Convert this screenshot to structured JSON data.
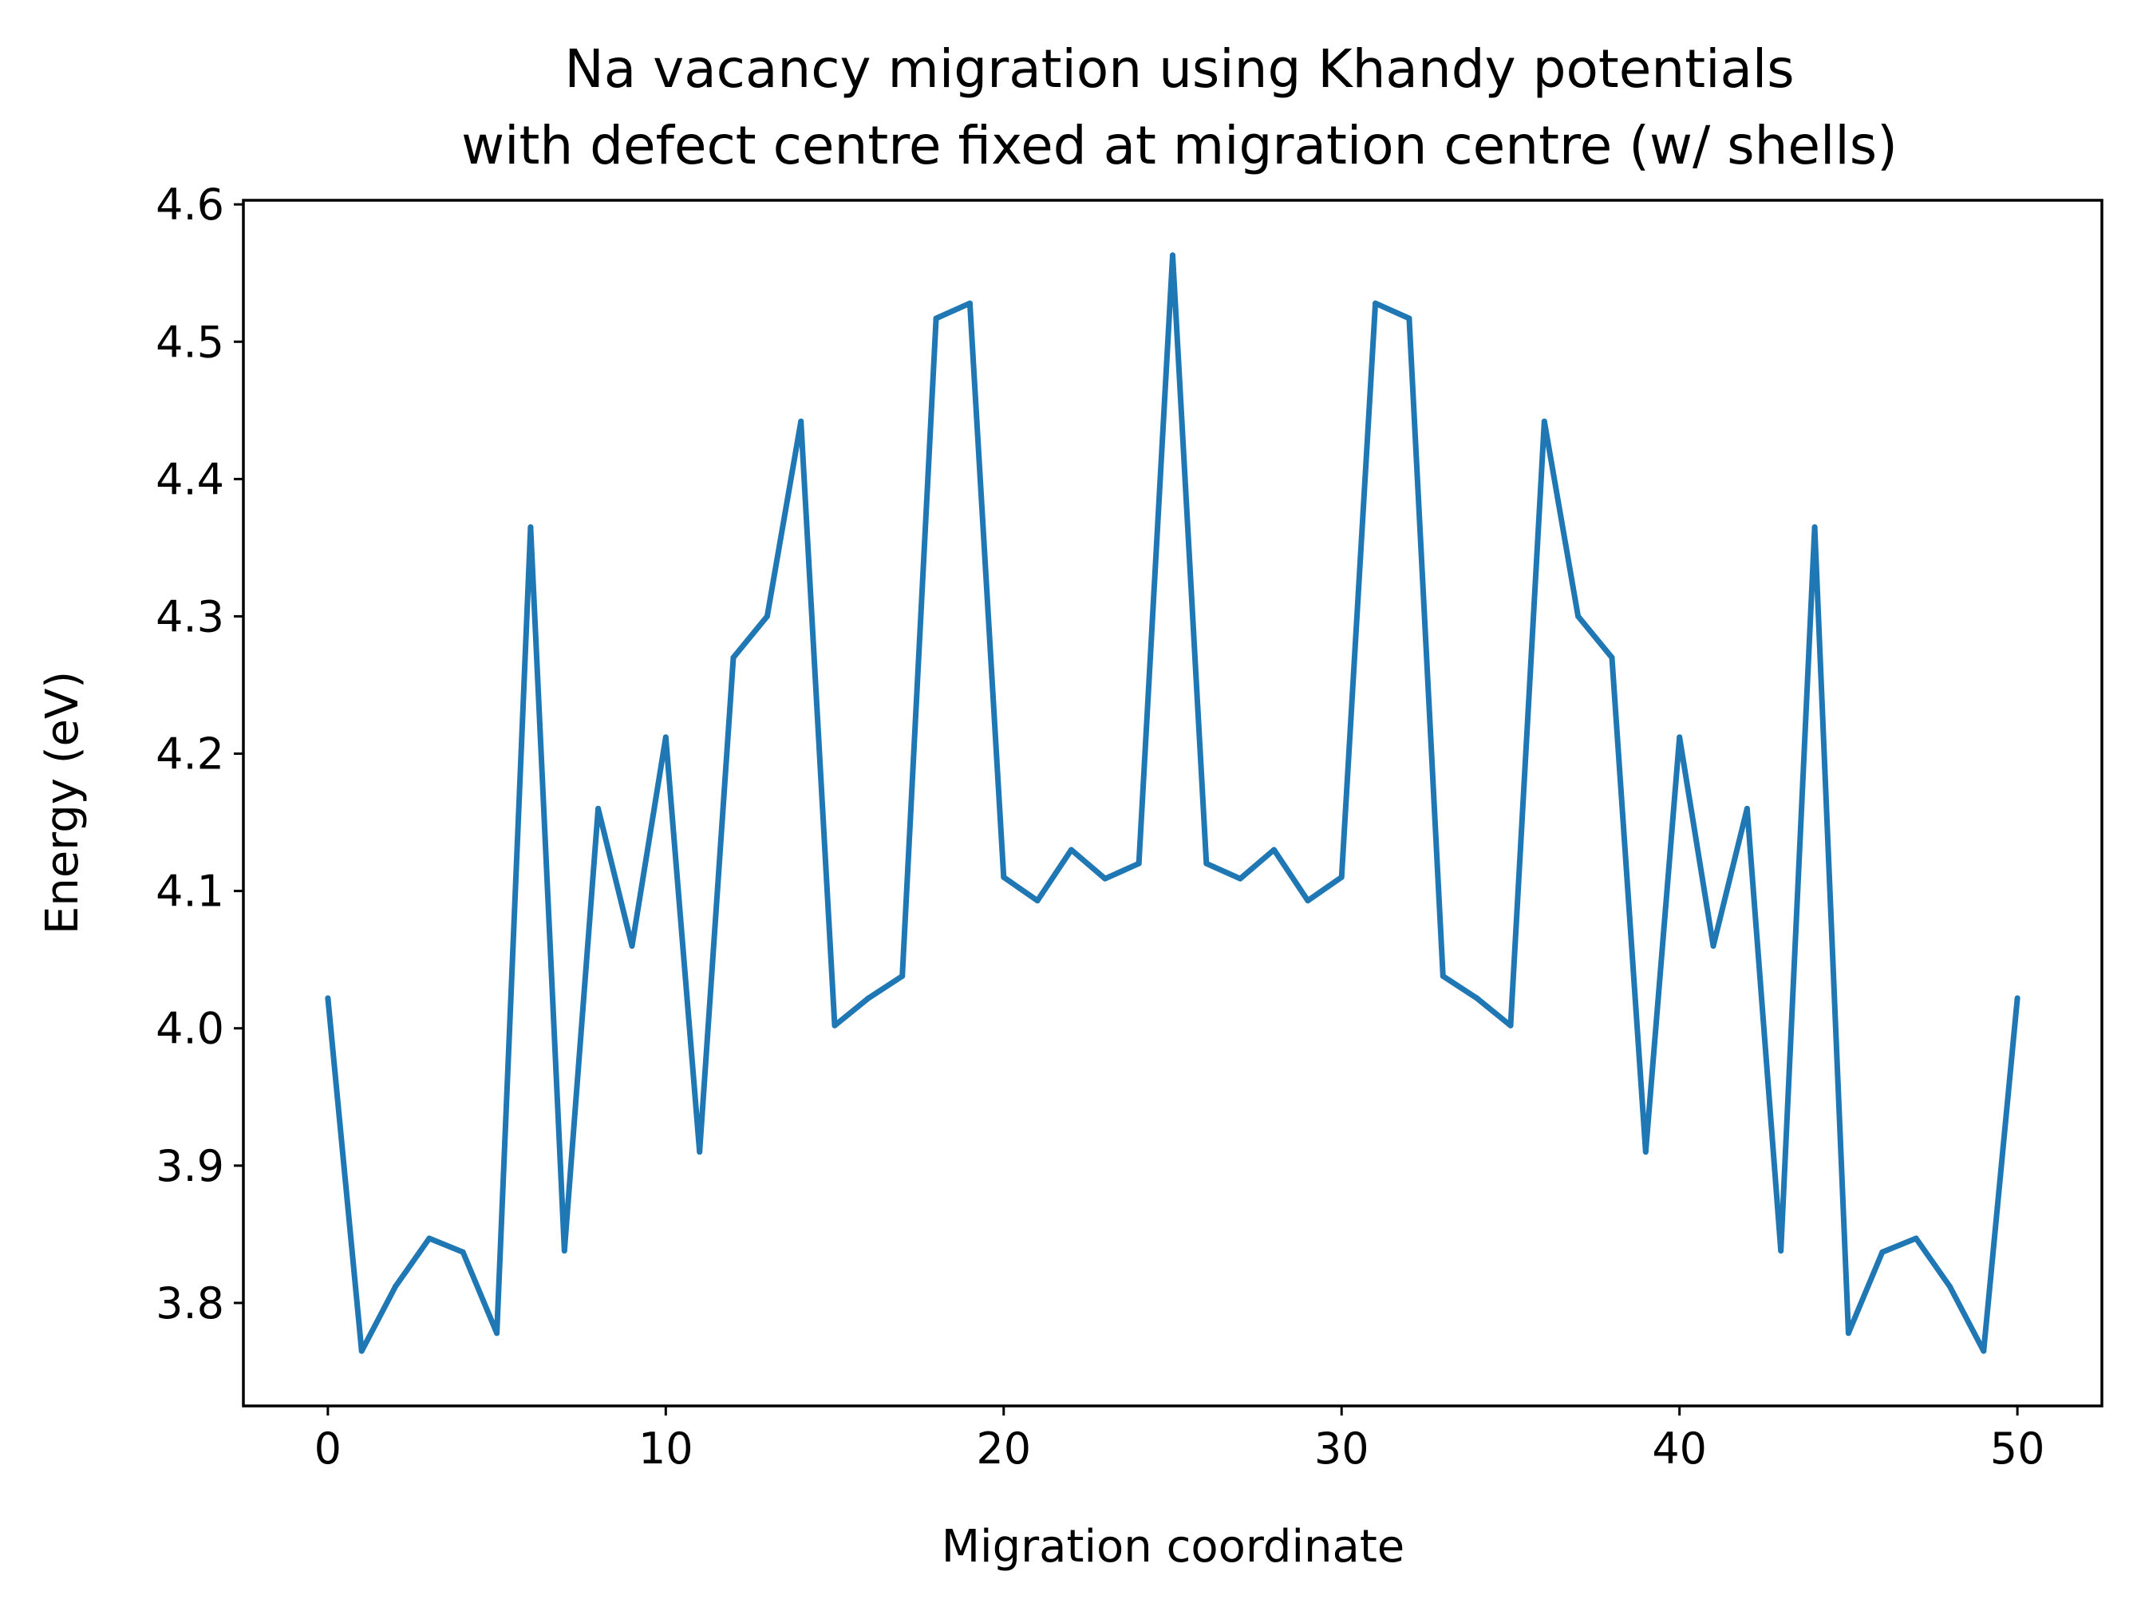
{
  "colors": {
    "line": "#1f77b4",
    "axis": "#000000",
    "background": "#ffffff"
  },
  "chart_data": {
    "type": "line",
    "title_line1": "Na vacancy migration using Khandy potentials",
    "title_line2": "with defect centre fixed at migration centre (w/ shells)",
    "xlabel": "Migration coordinate",
    "ylabel": "Energy (eV)",
    "xlim": [
      -2.5,
      52.5
    ],
    "ylim": [
      3.725,
      4.603
    ],
    "xticks": [
      0,
      10,
      20,
      30,
      40,
      50
    ],
    "xtick_labels": [
      "0",
      "10",
      "20",
      "30",
      "40",
      "50"
    ],
    "yticks": [
      3.8,
      3.9,
      4.0,
      4.1,
      4.2,
      4.3,
      4.4,
      4.5,
      4.6
    ],
    "ytick_labels": [
      "3.8",
      "3.9",
      "4.0",
      "4.1",
      "4.2",
      "4.3",
      "4.4",
      "4.5",
      "4.6"
    ],
    "grid": false,
    "series": [
      {
        "name": "energy",
        "x": [
          0,
          1,
          2,
          3,
          4,
          5,
          6,
          7,
          8,
          9,
          10,
          11,
          12,
          13,
          14,
          15,
          16,
          17,
          18,
          19,
          20,
          21,
          22,
          23,
          24,
          25,
          26,
          27,
          28,
          29,
          30,
          31,
          32,
          33,
          34,
          35,
          36,
          37,
          38,
          39,
          40,
          41,
          42,
          43,
          44,
          45,
          46,
          47,
          48,
          49,
          50
        ],
        "y": [
          4.022,
          3.765,
          3.812,
          3.847,
          3.837,
          3.778,
          4.365,
          3.838,
          4.16,
          4.06,
          4.212,
          3.91,
          4.27,
          4.3,
          4.442,
          4.002,
          4.022,
          4.038,
          4.517,
          4.528,
          4.11,
          4.093,
          4.13,
          4.109,
          4.12,
          4.563,
          4.12,
          4.109,
          4.13,
          4.093,
          4.11,
          4.528,
          4.517,
          4.038,
          4.022,
          4.002,
          4.442,
          4.3,
          4.27,
          3.91,
          4.212,
          4.06,
          4.16,
          3.838,
          4.365,
          3.778,
          3.837,
          3.847,
          3.812,
          3.765,
          4.022
        ]
      }
    ]
  }
}
